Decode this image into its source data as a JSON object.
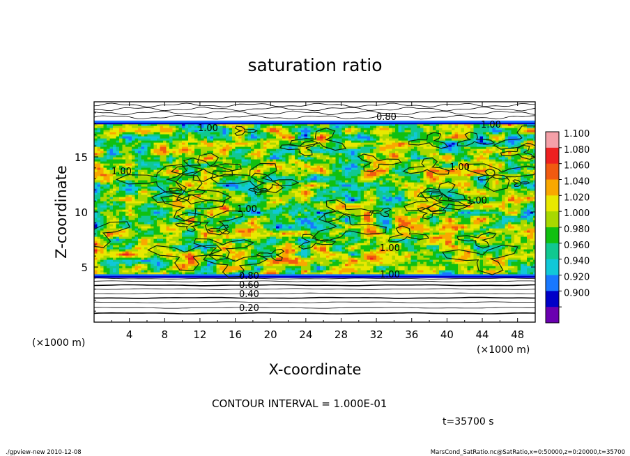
{
  "chart_data": {
    "type": "heatmap",
    "title": "saturation ratio",
    "xlabel": "X-coordinate",
    "ylabel": "Z-coordinate",
    "x_unit": "(×1000 m)",
    "y_unit": "(×1000 m)",
    "xlim": [
      0,
      50
    ],
    "ylim": [
      0,
      20
    ],
    "x_ticks": [
      "4",
      "8",
      "12",
      "16",
      "20",
      "24",
      "28",
      "32",
      "36",
      "40",
      "44",
      "48"
    ],
    "y_ticks": [
      "5",
      "10",
      "15"
    ],
    "colorbar": {
      "levels": [
        "1.100",
        "1.080",
        "1.060",
        "1.040",
        "1.020",
        "1.000",
        "0.980",
        "0.960",
        "0.940",
        "0.920",
        "0.900"
      ],
      "colors": [
        "#f4a0a8",
        "#ee2020",
        "#f15a10",
        "#f9a800",
        "#e8e800",
        "#a8d800",
        "#10c010",
        "#10c890",
        "#10c8d8",
        "#1878ff",
        "#0000c8",
        "#6a00b0"
      ]
    },
    "contour_labels": [
      "0.80",
      "1.00",
      "1.00",
      "1.00",
      "1.00",
      "1.00",
      "1.00",
      "1.00",
      "1.00",
      "0.80",
      "0.60",
      "0.40",
      "0.20"
    ],
    "contour_interval_text": "CONTOUR INTERVAL = 1.000E-01",
    "time_text": "t=35700 s"
  },
  "footer": {
    "left": "./gpview-new 2010-12-08",
    "right": "MarsCond_SatRatio.nc@SatRatio,x=0:50000,z=0:20000,t=35700"
  }
}
